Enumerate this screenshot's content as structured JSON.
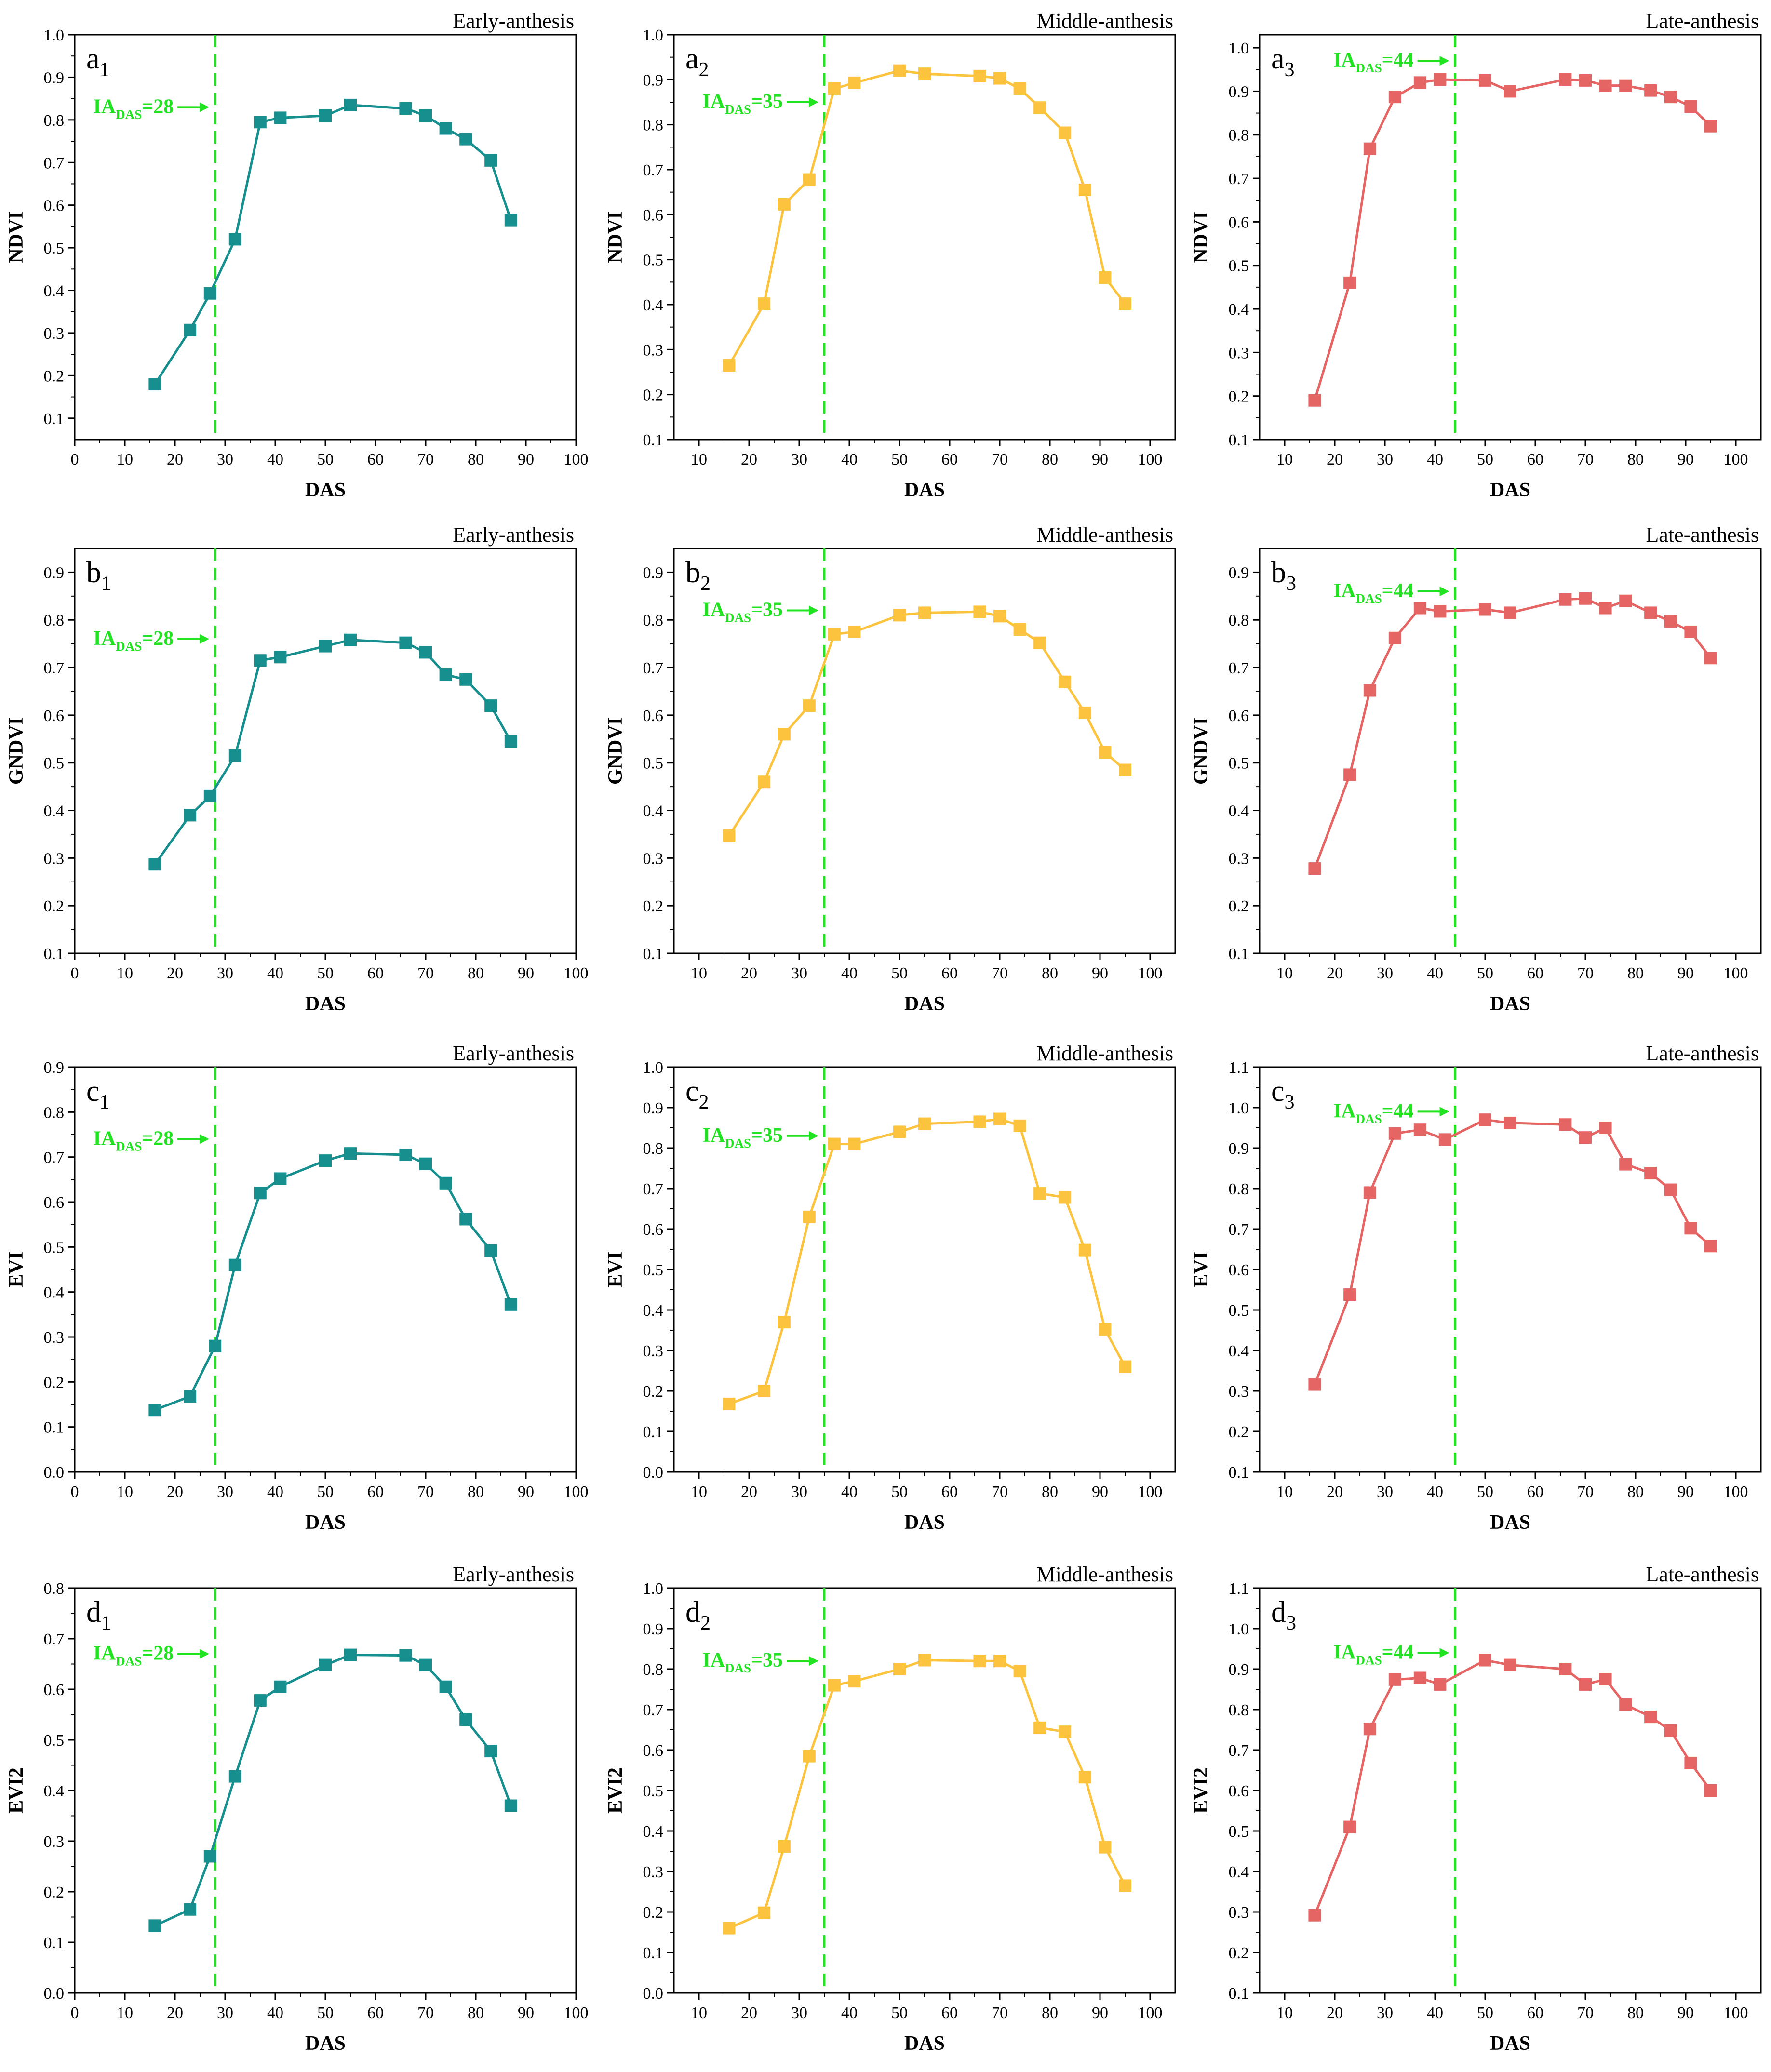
{
  "figure": {
    "colors": {
      "early": "#178f8f",
      "middle": "#fcc33f",
      "late": "#e56464",
      "ia_line": "#22e322",
      "axis": "#000000"
    },
    "ia_text": "IA",
    "ia_sub": "DAS"
  },
  "chart_data": [
    {
      "id": "a1",
      "type": "line",
      "row": 0,
      "col": 0,
      "letter": "a",
      "sub": "1",
      "stage": "Early-anthesis",
      "xlabel": "DAS",
      "ylabel": "NDVI",
      "xlim": [
        0,
        100
      ],
      "xticks": [
        0,
        10,
        20,
        30,
        40,
        50,
        60,
        70,
        80,
        90,
        100
      ],
      "ylim": [
        0.05,
        1.0
      ],
      "yticks": [
        0.1,
        0.2,
        0.3,
        0.4,
        0.5,
        0.6,
        0.7,
        0.8,
        0.9,
        1.0
      ],
      "ytick_decimals": 1,
      "ia_das": 28,
      "ia_value": "=28",
      "ia_label_y": 0.83,
      "color": "early",
      "x": [
        16,
        23,
        27,
        32,
        37,
        41,
        50,
        55,
        66,
        70,
        74,
        78,
        83,
        87
      ],
      "y": [
        0.18,
        0.307,
        0.393,
        0.52,
        0.795,
        0.805,
        0.81,
        0.835,
        0.827,
        0.81,
        0.78,
        0.755,
        0.705,
        0.565
      ]
    },
    {
      "id": "a2",
      "type": "line",
      "row": 0,
      "col": 1,
      "letter": "a",
      "sub": "2",
      "stage": "Middle-anthesis",
      "xlabel": "DAS",
      "ylabel": "NDVI",
      "xlim": [
        5,
        105
      ],
      "xticks": [
        10,
        20,
        30,
        40,
        50,
        60,
        70,
        80,
        90,
        100
      ],
      "ylim": [
        0.1,
        1.0
      ],
      "yticks": [
        0.1,
        0.2,
        0.3,
        0.4,
        0.5,
        0.6,
        0.7,
        0.8,
        0.9,
        1.0
      ],
      "ytick_decimals": 1,
      "ia_das": 35,
      "ia_value": "=35",
      "ia_label_y": 0.85,
      "color": "middle",
      "x": [
        16,
        23,
        27,
        32,
        37,
        41,
        50,
        55,
        66,
        70,
        74,
        78,
        83,
        87,
        91,
        95
      ],
      "y": [
        0.265,
        0.402,
        0.623,
        0.678,
        0.88,
        0.893,
        0.92,
        0.913,
        0.908,
        0.903,
        0.88,
        0.838,
        0.782,
        0.655,
        0.46,
        0.402
      ]
    },
    {
      "id": "a3",
      "type": "line",
      "row": 0,
      "col": 2,
      "letter": "a",
      "sub": "3",
      "stage": "Late-anthesis",
      "xlabel": "DAS",
      "ylabel": "NDVI",
      "xlim": [
        5,
        105
      ],
      "xticks": [
        10,
        20,
        30,
        40,
        50,
        60,
        70,
        80,
        90,
        100
      ],
      "ylim": [
        0.1,
        1.03
      ],
      "yticks": [
        0.1,
        0.2,
        0.3,
        0.4,
        0.5,
        0.6,
        0.7,
        0.8,
        0.9,
        1.0
      ],
      "ytick_decimals": 1,
      "ia_das": 44,
      "ia_value": "=44",
      "ia_label_y": 0.97,
      "color": "late",
      "x": [
        16,
        23,
        27,
        32,
        37,
        41,
        50,
        55,
        66,
        70,
        74,
        78,
        83,
        87,
        91,
        95
      ],
      "y": [
        0.19,
        0.46,
        0.768,
        0.887,
        0.92,
        0.927,
        0.925,
        0.9,
        0.927,
        0.925,
        0.913,
        0.913,
        0.902,
        0.887,
        0.865,
        0.82
      ]
    },
    {
      "id": "b1",
      "type": "line",
      "row": 1,
      "col": 0,
      "letter": "b",
      "sub": "1",
      "stage": "Early-anthesis",
      "xlabel": "DAS",
      "ylabel": "GNDVI",
      "xlim": [
        0,
        100
      ],
      "xticks": [
        0,
        10,
        20,
        30,
        40,
        50,
        60,
        70,
        80,
        90,
        100
      ],
      "ylim": [
        0.1,
        0.95
      ],
      "yticks": [
        0.1,
        0.2,
        0.3,
        0.4,
        0.5,
        0.6,
        0.7,
        0.8,
        0.9
      ],
      "ytick_decimals": 1,
      "ia_das": 28,
      "ia_value": "=28",
      "ia_label_y": 0.76,
      "color": "early",
      "x": [
        16,
        23,
        27,
        32,
        37,
        41,
        50,
        55,
        66,
        70,
        74,
        78,
        83,
        87
      ],
      "y": [
        0.287,
        0.39,
        0.43,
        0.515,
        0.715,
        0.722,
        0.745,
        0.758,
        0.752,
        0.732,
        0.685,
        0.675,
        0.62,
        0.545
      ]
    },
    {
      "id": "b2",
      "type": "line",
      "row": 1,
      "col": 1,
      "letter": "b",
      "sub": "2",
      "stage": "Middle-anthesis",
      "xlabel": "DAS",
      "ylabel": "GNDVI",
      "xlim": [
        5,
        105
      ],
      "xticks": [
        10,
        20,
        30,
        40,
        50,
        60,
        70,
        80,
        90,
        100
      ],
      "ylim": [
        0.1,
        0.95
      ],
      "yticks": [
        0.1,
        0.2,
        0.3,
        0.4,
        0.5,
        0.6,
        0.7,
        0.8,
        0.9
      ],
      "ytick_decimals": 1,
      "ia_das": 35,
      "ia_value": "=35",
      "ia_label_y": 0.82,
      "color": "middle",
      "x": [
        16,
        23,
        27,
        32,
        37,
        41,
        50,
        55,
        66,
        70,
        74,
        78,
        83,
        87,
        91,
        95
      ],
      "y": [
        0.347,
        0.46,
        0.56,
        0.62,
        0.77,
        0.775,
        0.81,
        0.815,
        0.817,
        0.808,
        0.78,
        0.752,
        0.67,
        0.605,
        0.522,
        0.485
      ]
    },
    {
      "id": "b3",
      "type": "line",
      "row": 1,
      "col": 2,
      "letter": "b",
      "sub": "3",
      "stage": "Late-anthesis",
      "xlabel": "DAS",
      "ylabel": "GNDVI",
      "xlim": [
        5,
        105
      ],
      "xticks": [
        10,
        20,
        30,
        40,
        50,
        60,
        70,
        80,
        90,
        100
      ],
      "ylim": [
        0.1,
        0.95
      ],
      "yticks": [
        0.1,
        0.2,
        0.3,
        0.4,
        0.5,
        0.6,
        0.7,
        0.8,
        0.9
      ],
      "ytick_decimals": 1,
      "ia_das": 44,
      "ia_value": "=44",
      "ia_label_y": 0.86,
      "color": "late",
      "x": [
        16,
        23,
        27,
        32,
        37,
        41,
        50,
        55,
        66,
        70,
        74,
        78,
        83,
        87,
        91,
        95
      ],
      "y": [
        0.278,
        0.475,
        0.652,
        0.762,
        0.825,
        0.818,
        0.822,
        0.815,
        0.843,
        0.845,
        0.825,
        0.84,
        0.815,
        0.797,
        0.775,
        0.72
      ]
    },
    {
      "id": "c1",
      "type": "line",
      "row": 2,
      "col": 0,
      "letter": "c",
      "sub": "1",
      "stage": "Early-anthesis",
      "xlabel": "DAS",
      "ylabel": "EVI",
      "xlim": [
        0,
        100
      ],
      "xticks": [
        0,
        10,
        20,
        30,
        40,
        50,
        60,
        70,
        80,
        90,
        100
      ],
      "ylim": [
        0.0,
        0.9
      ],
      "yticks": [
        0.0,
        0.1,
        0.2,
        0.3,
        0.4,
        0.5,
        0.6,
        0.7,
        0.8,
        0.9
      ],
      "ytick_decimals": 1,
      "ia_das": 28,
      "ia_value": "=28",
      "ia_label_y": 0.74,
      "color": "early",
      "x": [
        16,
        23,
        28,
        32,
        37,
        41,
        50,
        55,
        66,
        70,
        74,
        78,
        83,
        87
      ],
      "y": [
        0.138,
        0.168,
        0.28,
        0.46,
        0.62,
        0.652,
        0.692,
        0.708,
        0.705,
        0.685,
        0.642,
        0.562,
        0.492,
        0.372
      ]
    },
    {
      "id": "c2",
      "type": "line",
      "row": 2,
      "col": 1,
      "letter": "c",
      "sub": "2",
      "stage": "Middle-anthesis",
      "xlabel": "DAS",
      "ylabel": "EVI",
      "xlim": [
        5,
        105
      ],
      "xticks": [
        10,
        20,
        30,
        40,
        50,
        60,
        70,
        80,
        90,
        100
      ],
      "ylim": [
        0.0,
        1.0
      ],
      "yticks": [
        0.0,
        0.1,
        0.2,
        0.3,
        0.4,
        0.5,
        0.6,
        0.7,
        0.8,
        0.9,
        1.0
      ],
      "ytick_decimals": 1,
      "ia_das": 35,
      "ia_value": "=35",
      "ia_label_y": 0.83,
      "color": "middle",
      "x": [
        16,
        23,
        27,
        32,
        37,
        41,
        50,
        55,
        66,
        70,
        74,
        78,
        83,
        87,
        91,
        95
      ],
      "y": [
        0.168,
        0.2,
        0.37,
        0.63,
        0.81,
        0.81,
        0.84,
        0.86,
        0.865,
        0.872,
        0.855,
        0.688,
        0.678,
        0.548,
        0.352,
        0.26
      ]
    },
    {
      "id": "c3",
      "type": "line",
      "row": 2,
      "col": 2,
      "letter": "c",
      "sub": "3",
      "stage": "Late-anthesis",
      "xlabel": "DAS",
      "ylabel": "EVI",
      "xlim": [
        5,
        105
      ],
      "xticks": [
        10,
        20,
        30,
        40,
        50,
        60,
        70,
        80,
        90,
        100
      ],
      "ylim": [
        0.1,
        1.1
      ],
      "yticks": [
        0.1,
        0.2,
        0.3,
        0.4,
        0.5,
        0.6,
        0.7,
        0.8,
        0.9,
        1.0,
        1.1
      ],
      "ytick_decimals": 1,
      "ia_das": 44,
      "ia_value": "=44",
      "ia_label_y": 0.99,
      "color": "late",
      "x": [
        16,
        23,
        27,
        32,
        37,
        42,
        50,
        55,
        66,
        70,
        74,
        78,
        83,
        87,
        91,
        95
      ],
      "y": [
        0.316,
        0.538,
        0.79,
        0.936,
        0.945,
        0.921,
        0.97,
        0.962,
        0.958,
        0.926,
        0.95,
        0.86,
        0.838,
        0.797,
        0.702,
        0.658
      ]
    },
    {
      "id": "d1",
      "type": "line",
      "row": 3,
      "col": 0,
      "letter": "d",
      "sub": "1",
      "stage": "Early-anthesis",
      "xlabel": "DAS",
      "ylabel": "EVI2",
      "xlim": [
        0,
        100
      ],
      "xticks": [
        0,
        10,
        20,
        30,
        40,
        50,
        60,
        70,
        80,
        90,
        100
      ],
      "ylim": [
        0.0,
        0.8
      ],
      "yticks": [
        0.0,
        0.1,
        0.2,
        0.3,
        0.4,
        0.5,
        0.6,
        0.7,
        0.8
      ],
      "ytick_decimals": 1,
      "ia_das": 28,
      "ia_value": "=28",
      "ia_label_y": 0.67,
      "color": "early",
      "x": [
        16,
        23,
        27,
        32,
        37,
        41,
        50,
        55,
        66,
        70,
        74,
        78,
        83,
        87
      ],
      "y": [
        0.133,
        0.165,
        0.27,
        0.428,
        0.578,
        0.605,
        0.648,
        0.668,
        0.667,
        0.648,
        0.605,
        0.54,
        0.478,
        0.37
      ]
    },
    {
      "id": "d2",
      "type": "line",
      "row": 3,
      "col": 1,
      "letter": "d",
      "sub": "2",
      "stage": "Middle-anthesis",
      "xlabel": "DAS",
      "ylabel": "EVI2",
      "xlim": [
        5,
        105
      ],
      "xticks": [
        10,
        20,
        30,
        40,
        50,
        60,
        70,
        80,
        90,
        100
      ],
      "ylim": [
        0.0,
        1.0
      ],
      "yticks": [
        0.0,
        0.1,
        0.2,
        0.3,
        0.4,
        0.5,
        0.6,
        0.7,
        0.8,
        0.9,
        1.0
      ],
      "ytick_decimals": 1,
      "ia_das": 35,
      "ia_value": "=35",
      "ia_label_y": 0.82,
      "color": "middle",
      "x": [
        16,
        23,
        27,
        32,
        37,
        41,
        50,
        55,
        66,
        70,
        74,
        78,
        83,
        87,
        91,
        95
      ],
      "y": [
        0.16,
        0.198,
        0.362,
        0.585,
        0.76,
        0.77,
        0.8,
        0.822,
        0.82,
        0.82,
        0.795,
        0.655,
        0.645,
        0.533,
        0.36,
        0.265
      ]
    },
    {
      "id": "d3",
      "type": "line",
      "row": 3,
      "col": 2,
      "letter": "d",
      "sub": "3",
      "stage": "Late-anthesis",
      "xlabel": "DAS",
      "ylabel": "EVI2",
      "xlim": [
        5,
        105
      ],
      "xticks": [
        10,
        20,
        30,
        40,
        50,
        60,
        70,
        80,
        90,
        100
      ],
      "ylim": [
        0.1,
        1.1
      ],
      "yticks": [
        0.1,
        0.2,
        0.3,
        0.4,
        0.5,
        0.6,
        0.7,
        0.8,
        0.9,
        1.0,
        1.1
      ],
      "ytick_decimals": 1,
      "ia_das": 44,
      "ia_value": "=44",
      "ia_label_y": 0.94,
      "color": "late",
      "x": [
        16,
        23,
        27,
        32,
        37,
        41,
        50,
        55,
        66,
        70,
        74,
        78,
        83,
        87,
        91,
        95
      ],
      "y": [
        0.292,
        0.51,
        0.752,
        0.874,
        0.878,
        0.862,
        0.922,
        0.91,
        0.9,
        0.862,
        0.875,
        0.812,
        0.782,
        0.748,
        0.668,
        0.6
      ]
    }
  ]
}
